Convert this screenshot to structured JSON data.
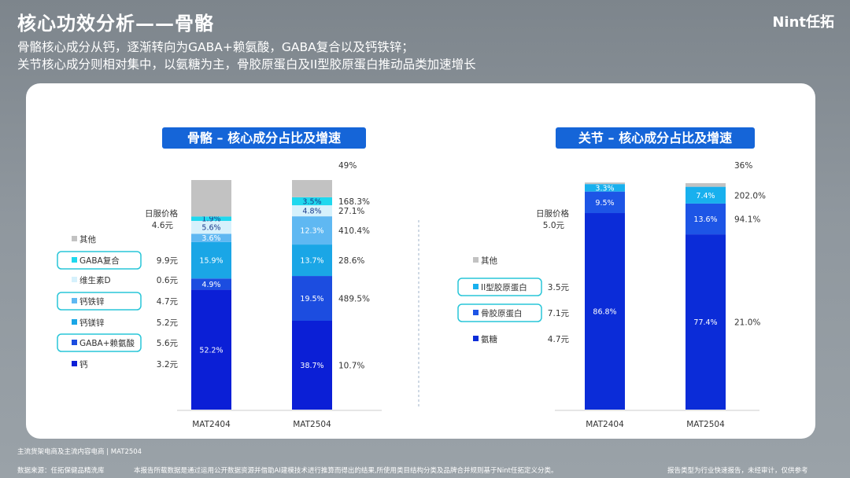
{
  "header": {
    "title": "核心功效分析——骨骼",
    "subtitle_1": "骨骼核心成分从钙，逐渐转向为GABA+赖氨酸，GABA复合以及钙铁锌；",
    "subtitle_2": "关节核心成分则相对集中，以氨糖为主，骨胶原蛋白及II型胶原蛋白推动品类加速增长",
    "logo": "Nint任拓"
  },
  "colors": {
    "calcium": "#0b1fd6",
    "gaba_lysine": "#1c4de0",
    "calcium_magnesium": "#1aa6e6",
    "calcium_iron_zinc": "#5fb8f2",
    "vitamin_d": "#d6f1fc",
    "gaba_complex": "#1fd8ee",
    "other": "#c2c2c2",
    "glucosamine": "#0b2cd8",
    "bone_collagen": "#1d55e6",
    "type2_collagen": "#18b0ee",
    "highlight_border": "#28c6d8",
    "panel_title_bg": "#1565d8"
  },
  "chart_data": [
    {
      "type": "bar",
      "stacked": true,
      "title": "骨骼 – 核心成分占比及增速",
      "categories": [
        "MAT2404",
        "MAT2504"
      ],
      "price_header": "日服价格",
      "price_header_value": "4.6元",
      "series": [
        {
          "name": "钙",
          "values": [
            52.2,
            38.7
          ],
          "value_labels": [
            "52.2%",
            "38.7%"
          ],
          "price": "3.2元",
          "growth": "10.7%",
          "highlighted": false
        },
        {
          "name": "GABA+赖氨酸",
          "values": [
            4.9,
            19.5
          ],
          "value_labels": [
            "4.9%",
            "19.5%"
          ],
          "price": "5.6元",
          "growth": "489.5%",
          "highlighted": true
        },
        {
          "name": "钙镁锌",
          "values": [
            15.9,
            13.7
          ],
          "value_labels": [
            "15.9%",
            "13.7%"
          ],
          "price": "5.2元",
          "growth": "28.6%",
          "highlighted": false
        },
        {
          "name": "钙铁锌",
          "values": [
            3.6,
            12.3
          ],
          "value_labels": [
            "3.6%",
            "12.3%"
          ],
          "price": "4.7元",
          "growth": "410.4%",
          "highlighted": true
        },
        {
          "name": "维生素D",
          "values": [
            5.6,
            4.8
          ],
          "value_labels": [
            "5.6%",
            "4.8%"
          ],
          "price": "0.6元",
          "growth": "27.1%",
          "highlighted": false
        },
        {
          "name": "GABA复合",
          "values": [
            1.9,
            3.5
          ],
          "value_labels": [
            "1.9%",
            "3.5%"
          ],
          "price": "9.9元",
          "growth": "168.3%",
          "highlighted": true
        },
        {
          "name": "其他",
          "values": [
            15.9,
            7.5
          ],
          "value_labels": [
            "",
            ""
          ],
          "price": "",
          "growth": "49%",
          "highlighted": false
        }
      ]
    },
    {
      "type": "bar",
      "stacked": true,
      "title": "关节 – 核心成分占比及增速",
      "categories": [
        "MAT2404",
        "MAT2504"
      ],
      "price_header": "日服价格",
      "price_header_value": "5.0元",
      "series": [
        {
          "name": "氨糖",
          "values": [
            86.8,
            77.4
          ],
          "value_labels": [
            "86.8%",
            "77.4%"
          ],
          "price": "4.7元",
          "growth": "21.0%",
          "highlighted": false
        },
        {
          "name": "骨胶原蛋白",
          "values": [
            9.5,
            13.6
          ],
          "value_labels": [
            "9.5%",
            "13.6%"
          ],
          "price": "7.1元",
          "growth": "94.1%",
          "highlighted": true
        },
        {
          "name": "II型胶原蛋白",
          "values": [
            3.3,
            7.4
          ],
          "value_labels": [
            "3.3%",
            "7.4%"
          ],
          "price": "3.5元",
          "growth": "202.0%",
          "highlighted": true
        },
        {
          "name": "其他",
          "values": [
            0.4,
            1.6
          ],
          "value_labels": [
            "",
            ""
          ],
          "price": "",
          "growth": "36%",
          "highlighted": false
        }
      ]
    }
  ],
  "footer": {
    "note": "主流货架电商及主流内容电商 | MAT2504",
    "source": "数据来源：任拓保健品精洗库",
    "disclaimer": "本报告所载数据是通过运用公开数据资源并借助AI建模技术进行推算而得出的结果,所使用类目结构分类及品牌合并规则基于Nint任拓定义分类。",
    "report_type": "报告类型为行业快速报告，未经审计，仅供参考"
  }
}
